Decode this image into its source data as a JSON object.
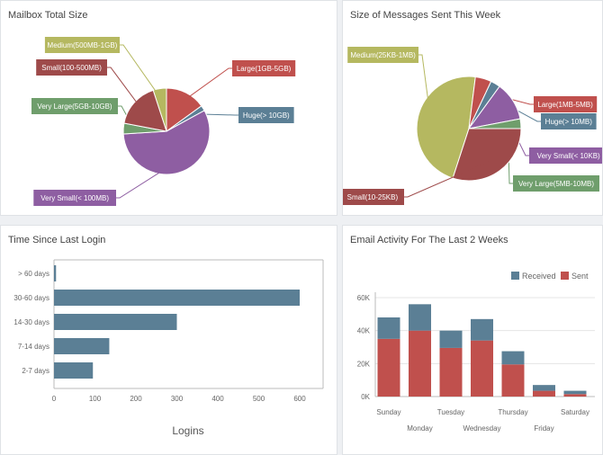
{
  "panels": {
    "mailbox": {
      "title": "Mailbox Total Size"
    },
    "sent": {
      "title": "Size of Messages Sent This Week"
    },
    "login": {
      "title": "Time Since Last Login"
    },
    "activity": {
      "title": "Email Activity For The Last 2 Weeks"
    }
  },
  "colors": {
    "olive": "#b5b860",
    "red": "#c0504d",
    "blue": "#5b7f95",
    "purple": "#8e5ea2",
    "green": "#6f9e6c",
    "maroon": "#9e4a4a"
  },
  "chart_data": [
    {
      "type": "pie",
      "title": "Mailbox Total Size",
      "slices": [
        {
          "label": "Medium(500MB-1GB)",
          "value": 5
        },
        {
          "label": "Large(1GB-5GB)",
          "value": 15
        },
        {
          "label": "Huge(> 10GB)",
          "value": 2
        },
        {
          "label": "Very Small(< 100MB)",
          "value": 57
        },
        {
          "label": "Very Large(5GB-10GB)",
          "value": 4
        },
        {
          "label": "Small(100-500MB)",
          "value": 17
        }
      ]
    },
    {
      "type": "pie",
      "title": "Size of Messages Sent This Week",
      "slices": [
        {
          "label": "Medium(25KB-1MB)",
          "value": 47
        },
        {
          "label": "Large(1MB-5MB)",
          "value": 5
        },
        {
          "label": "Huge(> 10MB)",
          "value": 3
        },
        {
          "label": "Very Small(< 10KB)",
          "value": 12
        },
        {
          "label": "Very Large(5MB-10MB)",
          "value": 3
        },
        {
          "label": "Small(10-25KB)",
          "value": 30
        }
      ]
    },
    {
      "type": "bar",
      "orientation": "horizontal",
      "title": "Time Since Last Login",
      "categories": [
        "> 60 days",
        "30-60 days",
        "14-30 days",
        "7-14 days",
        "2-7 days"
      ],
      "values": [
        5,
        600,
        300,
        135,
        95
      ],
      "xlabel": "Logins",
      "xticks": [
        "0",
        "100",
        "200",
        "300",
        "400",
        "500",
        "600"
      ],
      "xlim": [
        0,
        650
      ],
      "grid": false
    },
    {
      "type": "bar",
      "stacked": true,
      "title": "Email Activity For The Last 2 Weeks",
      "categories": [
        "Sunday",
        "Monday",
        "Tuesday",
        "Wednesday",
        "Thursday",
        "Friday",
        "Saturday"
      ],
      "series": [
        {
          "name": "Sent",
          "values": [
            35000,
            40000,
            29500,
            34000,
            19500,
            3500,
            1500
          ]
        },
        {
          "name": "Received",
          "values": [
            13000,
            16000,
            10500,
            13000,
            8000,
            3500,
            2000
          ]
        }
      ],
      "yticks": [
        "0K",
        "20K",
        "40K",
        "60K"
      ],
      "ylim": [
        0,
        60000
      ],
      "legend": "top-right",
      "grid": true
    }
  ]
}
